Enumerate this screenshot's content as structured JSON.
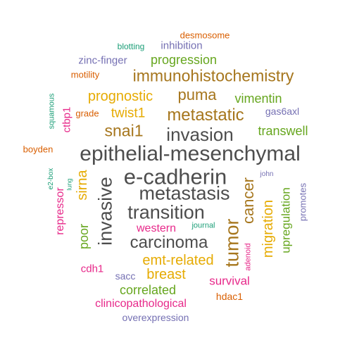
{
  "colors": {
    "gray": "#4d4d4d",
    "brown": "#a6761d",
    "orange": "#d95f02",
    "purple": "#7570b3",
    "magenta": "#e7298a",
    "green": "#66a61e",
    "gold": "#e6ab02",
    "teal": "#1b9e77"
  },
  "words": [
    {
      "text": "epithelial-mesenchymal",
      "color": "gray"
    },
    {
      "text": "e-cadherin",
      "color": "gray"
    },
    {
      "text": "metastasis",
      "color": "gray"
    },
    {
      "text": "transition",
      "color": "gray"
    },
    {
      "text": "invasion",
      "color": "gray"
    },
    {
      "text": "carcinoma",
      "color": "gray"
    },
    {
      "text": "invasive",
      "color": "gray"
    },
    {
      "text": "metastatic",
      "color": "brown"
    },
    {
      "text": "immunohistochemistry",
      "color": "brown"
    },
    {
      "text": "snai1",
      "color": "brown"
    },
    {
      "text": "tumor",
      "color": "brown"
    },
    {
      "text": "puma",
      "color": "brown"
    },
    {
      "text": "cancer",
      "color": "brown"
    },
    {
      "text": "prognostic",
      "color": "gold"
    },
    {
      "text": "twist1",
      "color": "gold"
    },
    {
      "text": "emt-related",
      "color": "gold"
    },
    {
      "text": "breast",
      "color": "gold"
    },
    {
      "text": "migration",
      "color": "gold"
    },
    {
      "text": "sirna",
      "color": "gold"
    },
    {
      "text": "progression",
      "color": "green"
    },
    {
      "text": "vimentin",
      "color": "green"
    },
    {
      "text": "transwell",
      "color": "green"
    },
    {
      "text": "correlated",
      "color": "green"
    },
    {
      "text": "upregulation",
      "color": "green"
    },
    {
      "text": "poor",
      "color": "green"
    },
    {
      "text": "survival",
      "color": "magenta"
    },
    {
      "text": "western",
      "color": "magenta"
    },
    {
      "text": "clinicopathological",
      "color": "magenta"
    },
    {
      "text": "repressor",
      "color": "magenta"
    },
    {
      "text": "ctbp1",
      "color": "magenta"
    },
    {
      "text": "cdh1",
      "color": "magenta"
    },
    {
      "text": "adenoid",
      "color": "magenta"
    },
    {
      "text": "inhibition",
      "color": "purple"
    },
    {
      "text": "zinc-finger",
      "color": "purple"
    },
    {
      "text": "gas6axl",
      "color": "purple"
    },
    {
      "text": "overexpression",
      "color": "purple"
    },
    {
      "text": "promotes",
      "color": "purple"
    },
    {
      "text": "sacc",
      "color": "purple"
    },
    {
      "text": "john",
      "color": "purple"
    },
    {
      "text": "desmosome",
      "color": "orange"
    },
    {
      "text": "motility",
      "color": "orange"
    },
    {
      "text": "grade",
      "color": "orange"
    },
    {
      "text": "boyden",
      "color": "orange"
    },
    {
      "text": "hdac1",
      "color": "orange"
    },
    {
      "text": "blotting",
      "color": "teal"
    },
    {
      "text": "squamous",
      "color": "teal"
    },
    {
      "text": "e2-box",
      "color": "teal"
    },
    {
      "text": "lung",
      "color": "teal"
    },
    {
      "text": "journal",
      "color": "teal"
    }
  ]
}
